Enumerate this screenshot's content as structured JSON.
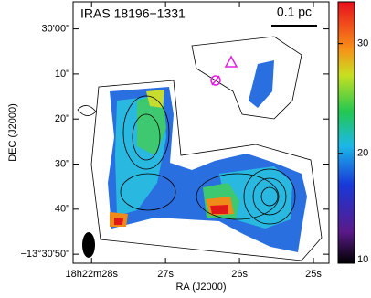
{
  "chart_data": {
    "type": "image",
    "title": "IRAS 18196−1331",
    "scale_label": "0.1 pc",
    "xlabel": "RA (J2000)",
    "ylabel": "DEC (J2000)",
    "xlim": [
      66148.25,
      66144.79
    ],
    "xticks": [
      {
        "value": 66148,
        "label": "18h22m28s"
      },
      {
        "value": 66147,
        "label": "27s"
      },
      {
        "value": 66146,
        "label": "26s"
      },
      {
        "value": 66145,
        "label": "25s"
      }
    ],
    "ylim": [
      -48652,
      -48594
    ],
    "yticks": [
      {
        "value": -48600,
        "label": "30'00\""
      },
      {
        "value": -48610,
        "label": "10\""
      },
      {
        "value": -48620,
        "label": "20\""
      },
      {
        "value": -48630,
        "label": "30\""
      },
      {
        "value": -48640,
        "label": "40\""
      },
      {
        "value": -48650,
        "label": "−13°30'50\""
      }
    ],
    "colorbar": {
      "lim": [
        10,
        33.8
      ],
      "ticks": [
        10,
        20,
        30
      ]
    }
  }
}
